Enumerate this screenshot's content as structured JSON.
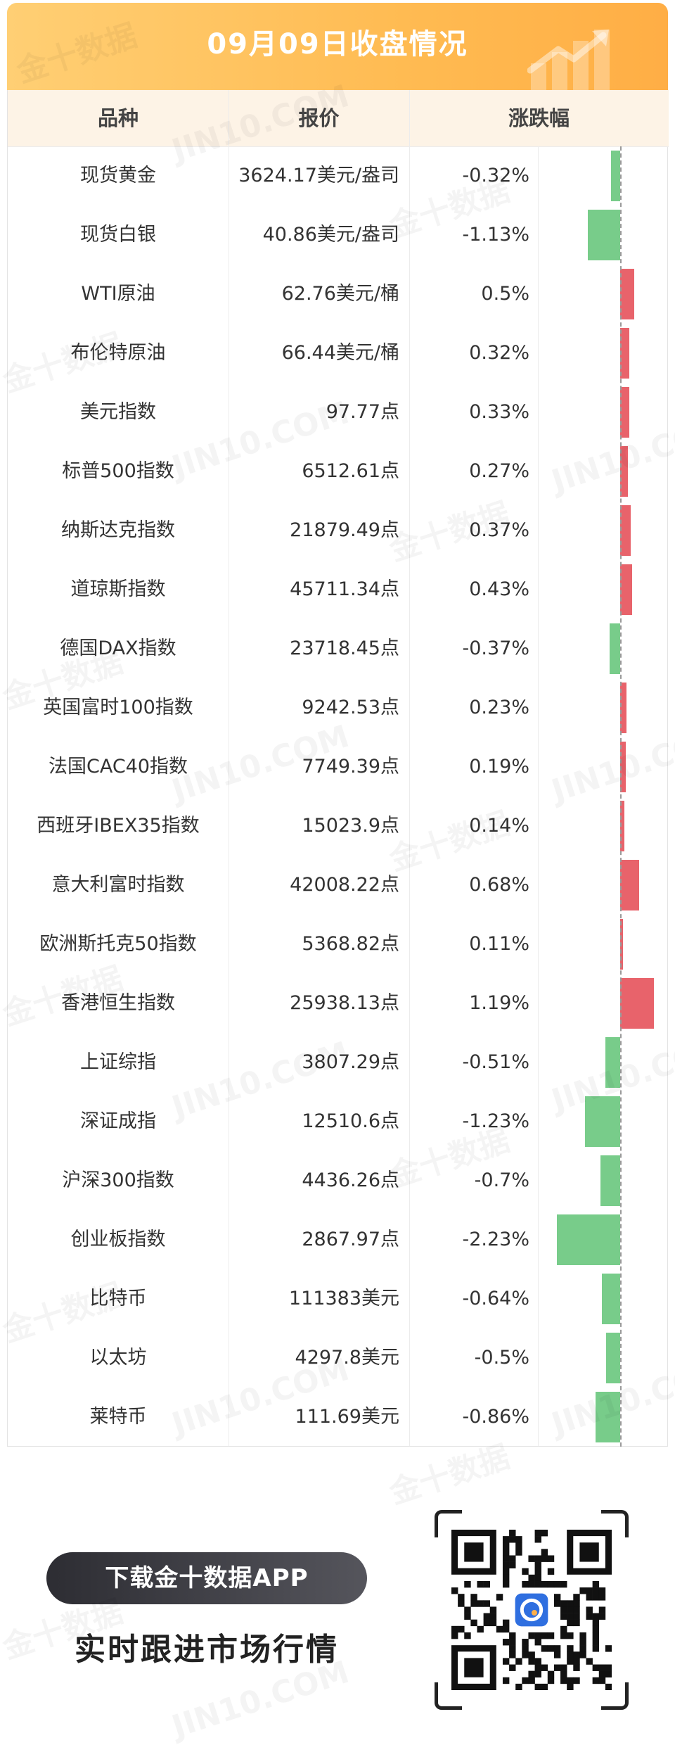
{
  "header": {
    "title": "09月09日收盘情况"
  },
  "table": {
    "columns": [
      "品种",
      "报价",
      "涨跌幅"
    ]
  },
  "chart_data": {
    "type": "table",
    "title": "09月09日收盘情况",
    "columns": [
      "品种",
      "报价",
      "涨跌幅"
    ],
    "rows": [
      {
        "name": "现货黄金",
        "price": "3624.17美元/盎司",
        "change": "-0.32%",
        "value": -0.32
      },
      {
        "name": "现货白银",
        "price": "40.86美元/盎司",
        "change": "-1.13%",
        "value": -1.13
      },
      {
        "name": "WTI原油",
        "price": "62.76美元/桶",
        "change": "0.5%",
        "value": 0.5
      },
      {
        "name": "布伦特原油",
        "price": "66.44美元/桶",
        "change": "0.32%",
        "value": 0.32
      },
      {
        "name": "美元指数",
        "price": "97.77点",
        "change": "0.33%",
        "value": 0.33
      },
      {
        "name": "标普500指数",
        "price": "6512.61点",
        "change": "0.27%",
        "value": 0.27
      },
      {
        "name": "纳斯达克指数",
        "price": "21879.49点",
        "change": "0.37%",
        "value": 0.37
      },
      {
        "name": "道琼斯指数",
        "price": "45711.34点",
        "change": "0.43%",
        "value": 0.43
      },
      {
        "name": "德国DAX指数",
        "price": "23718.45点",
        "change": "-0.37%",
        "value": -0.37
      },
      {
        "name": "英国富时100指数",
        "price": "9242.53点",
        "change": "0.23%",
        "value": 0.23
      },
      {
        "name": "法国CAC40指数",
        "price": "7749.39点",
        "change": "0.19%",
        "value": 0.19
      },
      {
        "name": "西班牙IBEX35指数",
        "price": "15023.9点",
        "change": "0.14%",
        "value": 0.14
      },
      {
        "name": "意大利富时指数",
        "price": "42008.22点",
        "change": "0.68%",
        "value": 0.68
      },
      {
        "name": "欧洲斯托克50指数",
        "price": "5368.82点",
        "change": "0.11%",
        "value": 0.11
      },
      {
        "name": "香港恒生指数",
        "price": "25938.13点",
        "change": "1.19%",
        "value": 1.19
      },
      {
        "name": "上证综指",
        "price": "3807.29点",
        "change": "-0.51%",
        "value": -0.51
      },
      {
        "name": "深证成指",
        "price": "12510.6点",
        "change": "-1.23%",
        "value": -1.23
      },
      {
        "name": "沪深300指数",
        "price": "4436.26点",
        "change": "-0.7%",
        "value": -0.7
      },
      {
        "name": "创业板指数",
        "price": "2867.97点",
        "change": "-2.23%",
        "value": -2.23
      },
      {
        "name": "比特币",
        "price": "111383美元",
        "change": "-0.64%",
        "value": -0.64
      },
      {
        "name": "以太坊",
        "price": "4297.8美元",
        "change": "-0.5%",
        "value": -0.5
      },
      {
        "name": "莱特币",
        "price": "111.69美元",
        "change": "-0.86%",
        "value": -0.86
      }
    ],
    "colors": {
      "up": "#e8636b",
      "down": "#78cc8a"
    }
  },
  "footer": {
    "button_label": "下载金十数据APP",
    "slogan": "实时跟进市场行情"
  },
  "icons": {
    "qr": "qr-code-icon",
    "app": "jin10-app-logo-icon"
  }
}
